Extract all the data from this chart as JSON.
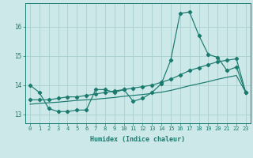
{
  "title": "",
  "xlabel": "Humidex (Indice chaleur)",
  "ylabel": "",
  "bg_color": "#cce8e8",
  "line_color": "#1a7a6e",
  "grid_color": "#aacfcf",
  "xlim": [
    -0.5,
    23.5
  ],
  "ylim": [
    12.7,
    16.8
  ],
  "xticks": [
    0,
    1,
    2,
    3,
    4,
    5,
    6,
    7,
    8,
    9,
    10,
    11,
    12,
    13,
    14,
    15,
    16,
    17,
    18,
    19,
    20,
    21,
    22,
    23
  ],
  "yticks": [
    13,
    14,
    15,
    16
  ],
  "line1_x": [
    0,
    1,
    2,
    3,
    4,
    5,
    6,
    7,
    8,
    9,
    10,
    11,
    12,
    13,
    14,
    15,
    16,
    17,
    18,
    19,
    20,
    21,
    22,
    23
  ],
  "line1_y": [
    14.0,
    13.75,
    13.2,
    13.1,
    13.1,
    13.15,
    13.15,
    13.85,
    13.85,
    13.75,
    13.85,
    13.45,
    13.55,
    13.75,
    14.05,
    14.85,
    16.45,
    16.5,
    15.7,
    15.05,
    14.95,
    14.5,
    14.62,
    13.75
  ],
  "line2_x": [
    0,
    1,
    2,
    3,
    4,
    5,
    6,
    7,
    8,
    9,
    10,
    11,
    12,
    13,
    14,
    15,
    16,
    17,
    18,
    19,
    20,
    21,
    22,
    23
  ],
  "line2_y": [
    13.5,
    13.5,
    13.5,
    13.55,
    13.6,
    13.6,
    13.65,
    13.7,
    13.75,
    13.8,
    13.85,
    13.9,
    13.95,
    14.0,
    14.1,
    14.2,
    14.35,
    14.5,
    14.6,
    14.7,
    14.8,
    14.85,
    14.9,
    13.75
  ],
  "line3_x": [
    0,
    1,
    2,
    3,
    4,
    5,
    6,
    7,
    8,
    9,
    10,
    11,
    12,
    13,
    14,
    15,
    16,
    17,
    18,
    19,
    20,
    21,
    22,
    23
  ],
  "line3_y": [
    13.35,
    13.38,
    13.4,
    13.42,
    13.45,
    13.48,
    13.5,
    13.52,
    13.55,
    13.58,
    13.62,
    13.65,
    13.68,
    13.72,
    13.76,
    13.82,
    13.9,
    13.98,
    14.05,
    14.12,
    14.2,
    14.27,
    14.33,
    13.75
  ]
}
